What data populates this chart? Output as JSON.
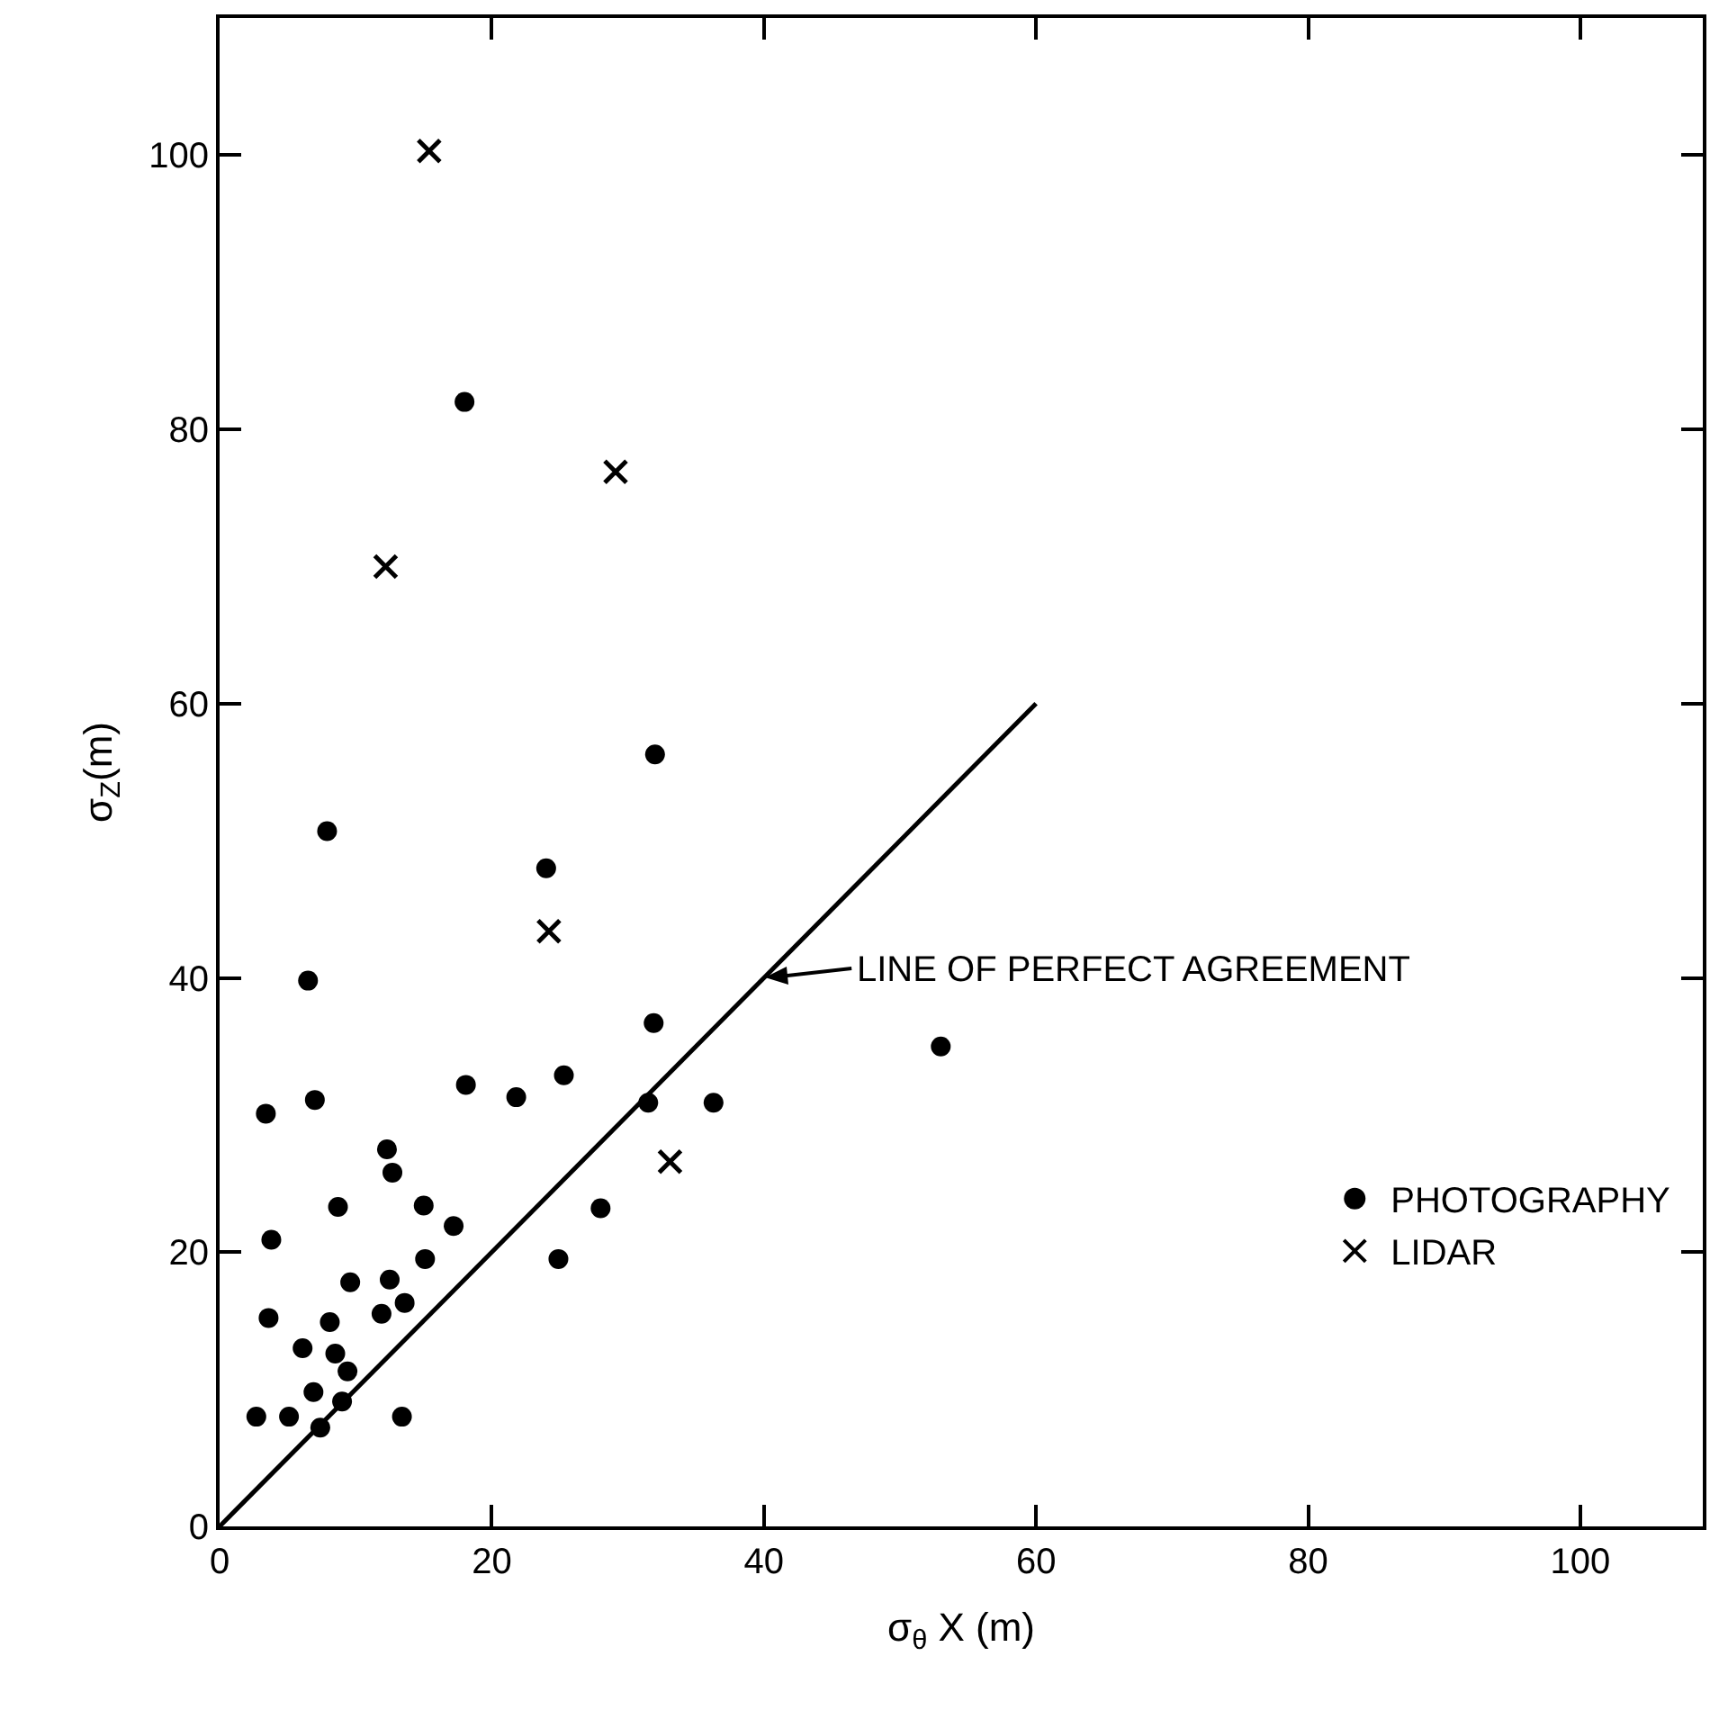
{
  "chart_data": {
    "type": "scatter",
    "xlabel": "σ$_{θ}$ X (m)",
    "ylabel": "σ$_{Z}$(m)",
    "xlim": [
      0,
      109
    ],
    "ylim": [
      0,
      110
    ],
    "xticks": [
      0,
      20,
      40,
      60,
      80,
      100
    ],
    "yticks": [
      0,
      20,
      40,
      60,
      80,
      100
    ],
    "grid": false,
    "legend": "right",
    "series": [
      {
        "name": "PHOTOGRAPHY",
        "color": "#000000",
        "marker": "circle",
        "x": [
          7.9,
          6.5,
          3.4,
          7.0,
          12.3,
          12.7,
          8.7,
          3.8,
          15.0,
          17.2,
          15.1,
          9.6,
          12.5,
          3.6,
          8.1,
          11.9,
          13.6,
          6.1,
          8.5,
          9.4,
          6.9,
          9.0,
          2.7,
          5.1,
          7.4,
          13.4,
          18.1,
          21.8,
          25.3,
          24.0,
          32.0,
          31.9,
          31.5,
          36.3,
          28.0,
          24.9,
          18.0,
          53.0
        ],
        "values": [
          50.7,
          39.8,
          30.1,
          31.1,
          27.5,
          25.8,
          23.3,
          20.9,
          23.4,
          21.9,
          19.5,
          17.8,
          18.0,
          15.2,
          14.9,
          15.5,
          16.3,
          13.0,
          12.6,
          11.3,
          9.8,
          9.1,
          8.0,
          8.0,
          7.2,
          8.0,
          32.2,
          31.3,
          32.9,
          48.0,
          56.3,
          36.7,
          30.9,
          30.9,
          23.2,
          19.5,
          82.0,
          35.0
        ]
      },
      {
        "name": "LIDAR",
        "color": "#000000",
        "marker": "cross",
        "x": [
          15.4,
          29.1,
          12.2,
          24.2,
          33.1
        ],
        "values": [
          100.3,
          76.9,
          70.0,
          43.4,
          26.6
        ]
      },
      {
        "type": "line",
        "color": "#000000",
        "line_style": "solid",
        "marker": "none",
        "x": [
          0,
          60
        ],
        "values": [
          0,
          60
        ]
      }
    ],
    "annotations": [
      {
        "text": "LINE OF PERFECT AGREEMENT",
        "x": 40,
        "y": 40
      }
    ]
  }
}
